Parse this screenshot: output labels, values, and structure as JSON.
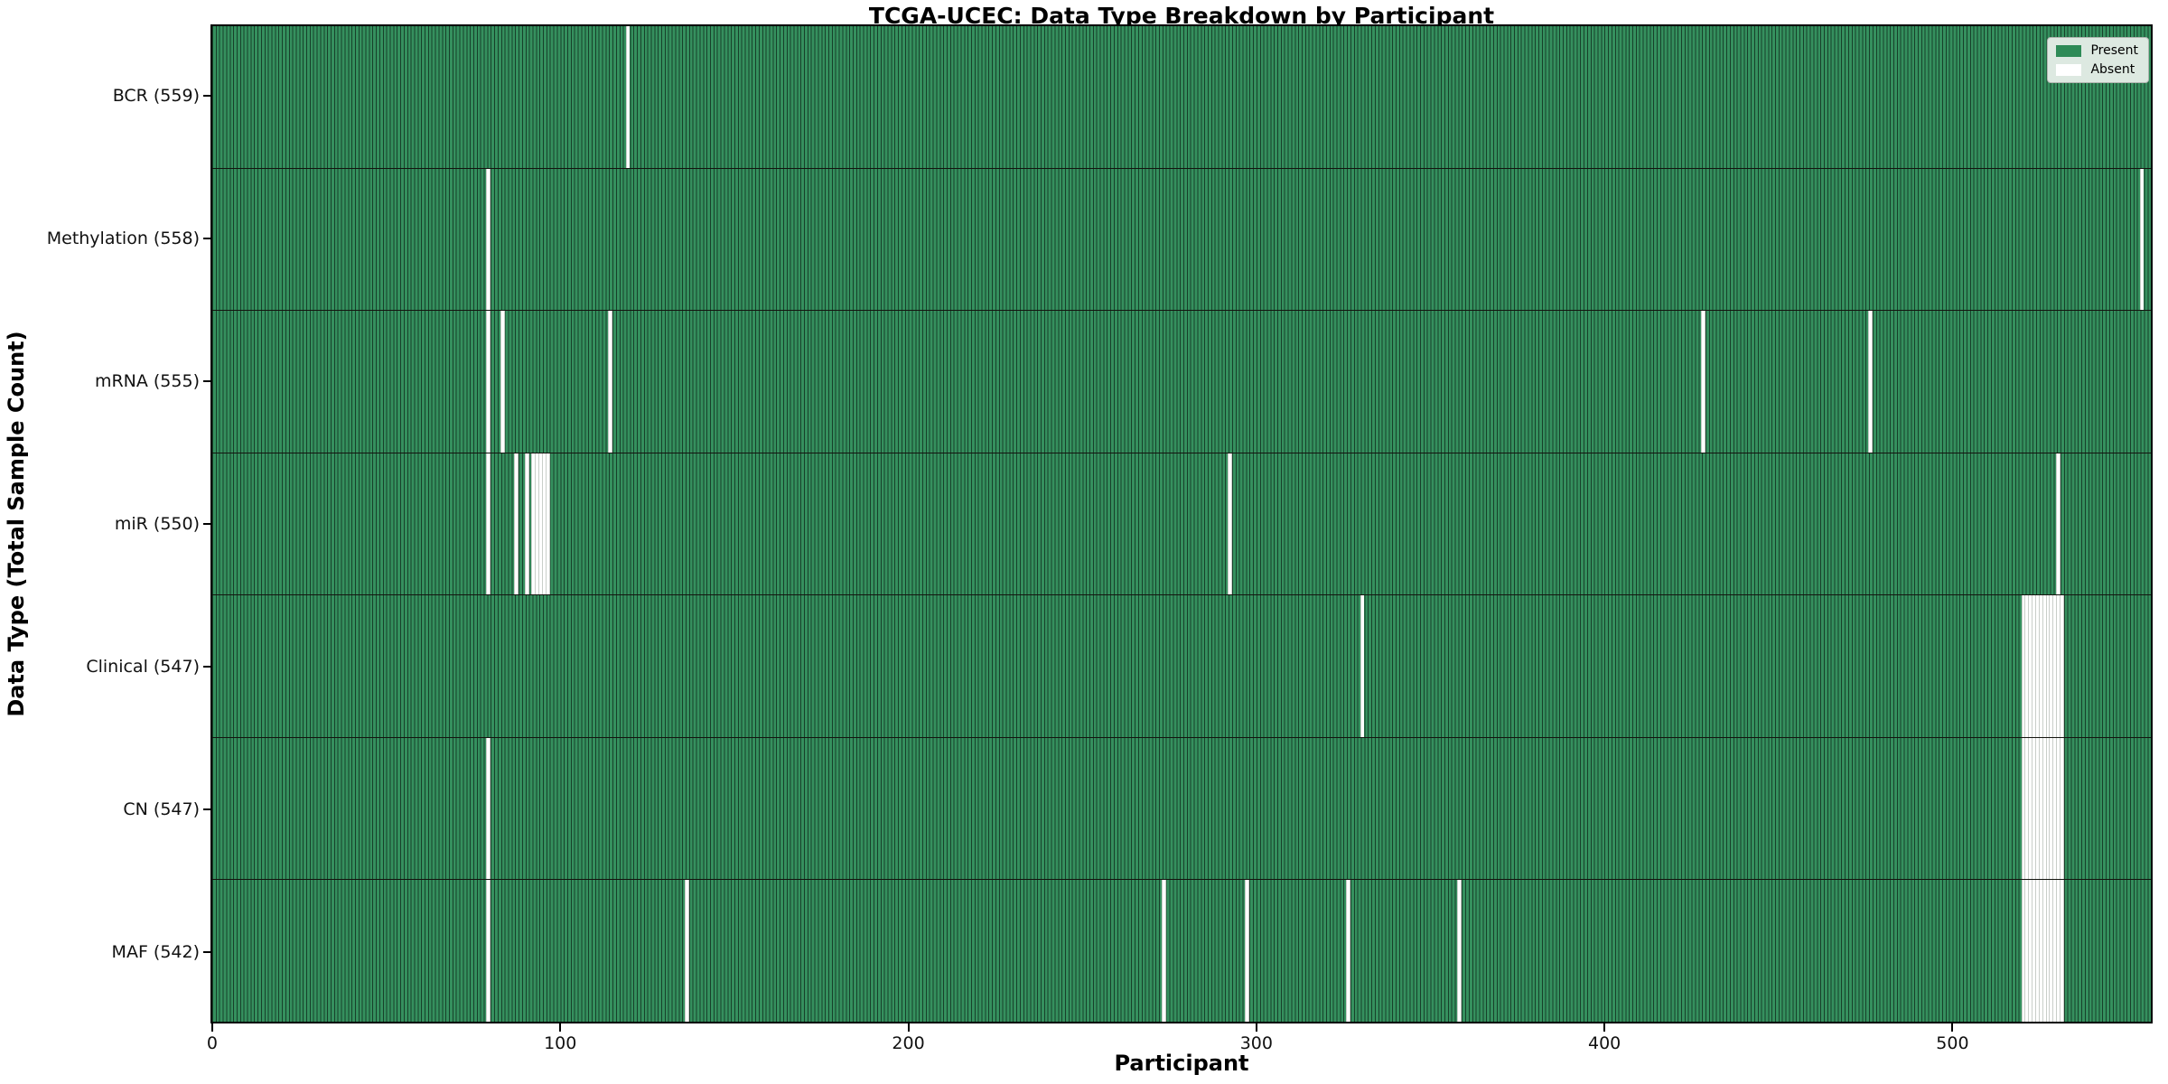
{
  "chart_data": {
    "type": "heatmap",
    "title": "TCGA-UCEC: Data Type Breakdown by Participant",
    "xlabel": "Participant",
    "ylabel": "Data Type (Total Sample Count)",
    "x_ticks": [
      0,
      100,
      200,
      300,
      400,
      500
    ],
    "n_participants": 558,
    "legend": [
      {
        "label": "Present",
        "color": "#2e8b57"
      },
      {
        "label": "Absent",
        "color": "#ffffff"
      }
    ],
    "colors": {
      "present": "#35905e",
      "bar_edge": "#17402a",
      "absent": "#ffffff"
    },
    "rows": [
      {
        "short": "bcr",
        "label": "BCR (559)",
        "total_samples": 559,
        "absent_participants": [
          119
        ]
      },
      {
        "short": "methylation",
        "label": "Methylation (558)",
        "total_samples": 558,
        "absent_participants": [
          79,
          554
        ]
      },
      {
        "short": "mrna",
        "label": "mRNA (555)",
        "total_samples": 555,
        "absent_participants": [
          79,
          83,
          114,
          428,
          476
        ]
      },
      {
        "short": "mir",
        "label": "miR (550)",
        "total_samples": 550,
        "absent_participants": [
          79,
          87,
          90,
          92,
          93,
          94,
          95,
          96,
          292,
          530
        ]
      },
      {
        "short": "clinical",
        "label": "Clinical (547)",
        "total_samples": 547,
        "absent_participants": [
          330,
          520,
          521,
          522,
          523,
          524,
          525,
          526,
          527,
          528,
          529,
          530,
          531
        ]
      },
      {
        "short": "cn",
        "label": "CN (547)",
        "total_samples": 547,
        "absent_participants": [
          79,
          520,
          521,
          522,
          523,
          524,
          525,
          526,
          527,
          528,
          529,
          530,
          531
        ]
      },
      {
        "short": "maf",
        "label": "MAF (542)",
        "total_samples": 542,
        "absent_participants": [
          79,
          136,
          273,
          297,
          326,
          358,
          520,
          521,
          522,
          523,
          524,
          525,
          526,
          527,
          528,
          529,
          530,
          531
        ]
      }
    ]
  }
}
